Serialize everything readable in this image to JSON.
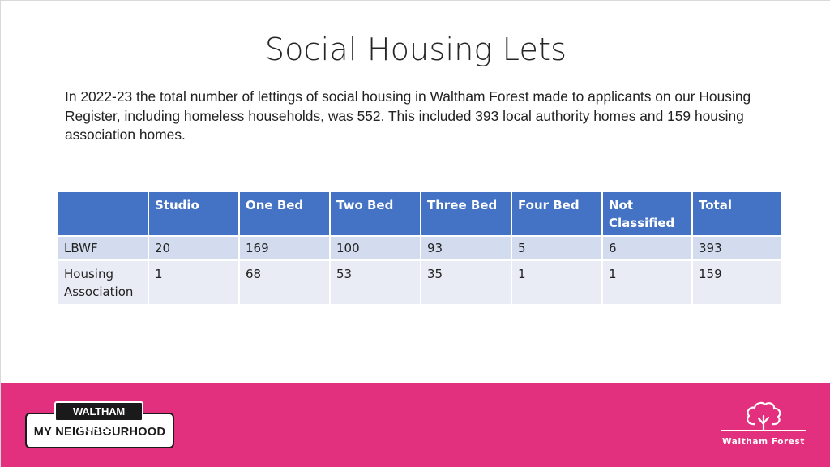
{
  "slide": {
    "title": "Social Housing Lets",
    "intro": "In 2022-23 the total number of lettings of social housing in Waltham Forest  made to applicants on our Housing Register, including homeless households, was 552. This included 393 local authority homes and 159 housing association homes."
  },
  "table": {
    "headers": [
      "",
      "Studio",
      "One Bed",
      "Two Bed",
      "Three Bed",
      "Four Bed",
      "Not Classified",
      "Total"
    ],
    "rows": [
      [
        "LBWF",
        "20",
        "169",
        "100",
        "93",
        "5",
        "6",
        "393"
      ],
      [
        "Housing Association",
        "1",
        "68",
        "53",
        "35",
        "1",
        "1",
        "159"
      ]
    ]
  },
  "footer": {
    "background_color": "#e2307e",
    "left_logo": {
      "top": "WALTHAM FOREST",
      "bottom": "MY NEIGHBOURHOOD"
    },
    "right_logo": {
      "icon": "tree-icon",
      "text": "Waltham Forest"
    }
  },
  "colors": {
    "header_blue": "#4472c4",
    "row_band_dark": "#d3dbee",
    "row_band_light": "#e9ecf5"
  }
}
